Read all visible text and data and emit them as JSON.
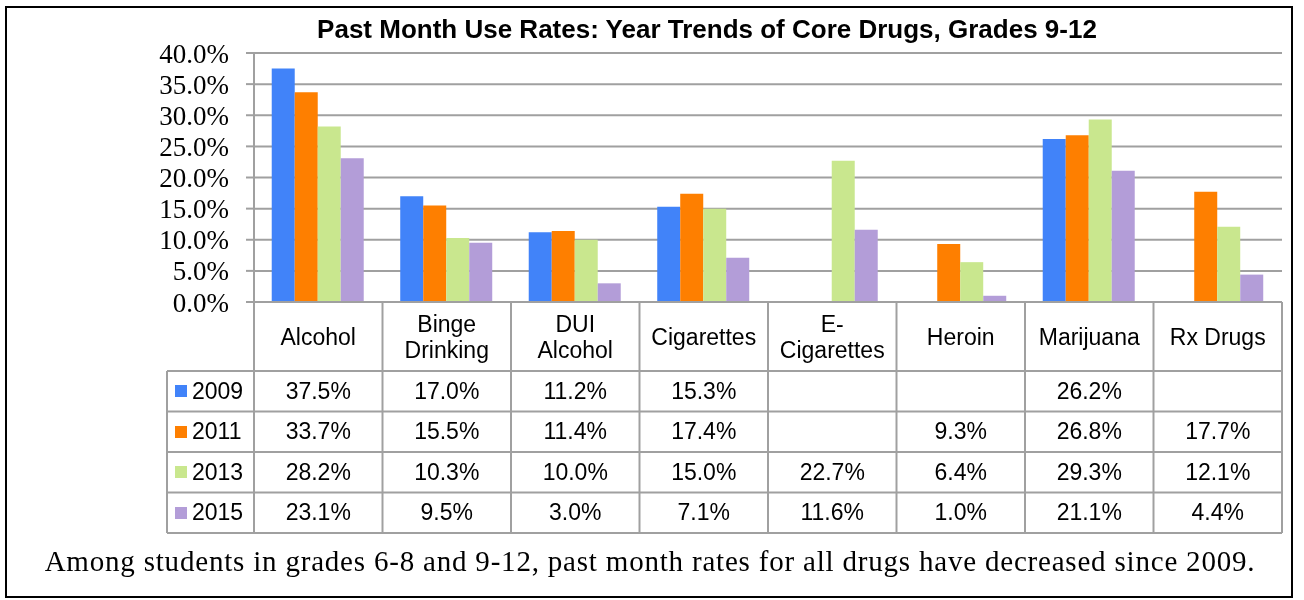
{
  "chart_data": {
    "type": "bar",
    "title": "Past Month Use Rates: Year Trends of Core Drugs, Grades 9-12",
    "categories": [
      "Alcohol",
      "Binge Drinking",
      "DUI Alcohol",
      "Cigarettes",
      "E-Cigarettes",
      "Heroin",
      "Marijuana",
      "Rx Drugs"
    ],
    "series": [
      {
        "name": "2009",
        "color": "#4183f9",
        "values": [
          37.5,
          17.0,
          11.2,
          15.3,
          null,
          null,
          26.2,
          null
        ],
        "value_labels": [
          "37.5%",
          "17.0%",
          "11.2%",
          "15.3%",
          null,
          null,
          "26.2%",
          null
        ]
      },
      {
        "name": "2011",
        "color": "#fe7f00",
        "values": [
          33.7,
          15.5,
          11.4,
          17.4,
          null,
          9.3,
          26.8,
          17.7
        ],
        "value_labels": [
          "33.7%",
          "15.5%",
          "11.4%",
          "17.4%",
          null,
          "9.3%",
          "26.8%",
          "17.7%"
        ]
      },
      {
        "name": "2013",
        "color": "#c9e78e",
        "values": [
          28.2,
          10.3,
          10.0,
          15.0,
          22.7,
          6.4,
          29.3,
          12.1
        ],
        "value_labels": [
          "28.2%",
          "10.3%",
          "10.0%",
          "15.0%",
          "22.7%",
          "6.4%",
          "29.3%",
          "12.1%"
        ]
      },
      {
        "name": "2015",
        "color": "#b39dd8",
        "values": [
          23.1,
          9.5,
          3.0,
          7.1,
          11.6,
          1.0,
          21.1,
          4.4
        ],
        "value_labels": [
          "23.1%",
          "9.5%",
          "3.0%",
          "7.1%",
          "11.6%",
          "1.0%",
          "21.1%",
          "4.4%"
        ]
      }
    ],
    "ylim": [
      0,
      40
    ],
    "yticks": [
      {
        "value": 0,
        "label": "0.0%"
      },
      {
        "value": 5,
        "label": "5.0%"
      },
      {
        "value": 10,
        "label": "10.0%"
      },
      {
        "value": 15,
        "label": "15.0%"
      },
      {
        "value": 20,
        "label": "20.0%"
      },
      {
        "value": 25,
        "label": "25.0%"
      },
      {
        "value": 30,
        "label": "30.0%"
      },
      {
        "value": 35,
        "label": "35.0%"
      },
      {
        "value": 40,
        "label": "40.0%"
      }
    ],
    "grid": "y",
    "legend": "bottom left",
    "annotations": [
      "Among students in grades 6-8 and 9-12, past month rates for all drugs have decreased since 2009."
    ]
  }
}
